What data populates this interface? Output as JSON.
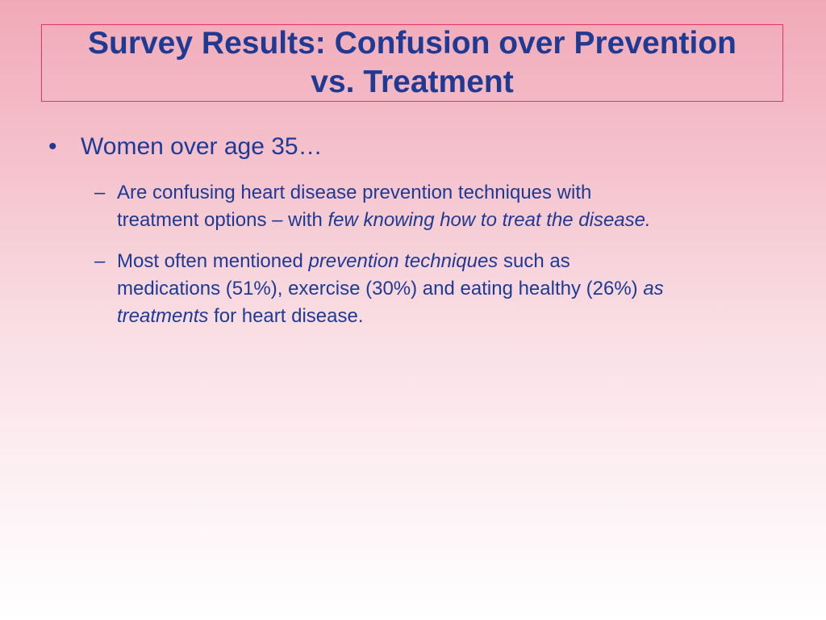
{
  "slide": {
    "title_line1": "Survey Results: Confusion over Prevention",
    "title_line2": "vs. Treatment",
    "bullet": {
      "marker": "•",
      "text": "Women over age 35…"
    },
    "subbullets": [
      {
        "marker": "–",
        "line1": "Are confusing heart disease prevention techniques with",
        "line2_plain": "treatment options – with ",
        "line2_italic": "few knowing how to treat the disease."
      },
      {
        "marker": "–",
        "line1_plain": "Most often mentioned ",
        "line1_italic": "prevention techniques",
        "line1_tail": " such as",
        "line2_plain": "medications (51%), exercise (30%) and eating healthy (26%) ",
        "line2_italic": "as",
        "line3_italic": "treatments",
        "line3_plain": " for heart disease."
      }
    ],
    "colors": {
      "text": "#1f3a93",
      "title_border": "#e8336a",
      "background_top": "#f1a9b7",
      "background_bottom": "#ffffff"
    }
  }
}
